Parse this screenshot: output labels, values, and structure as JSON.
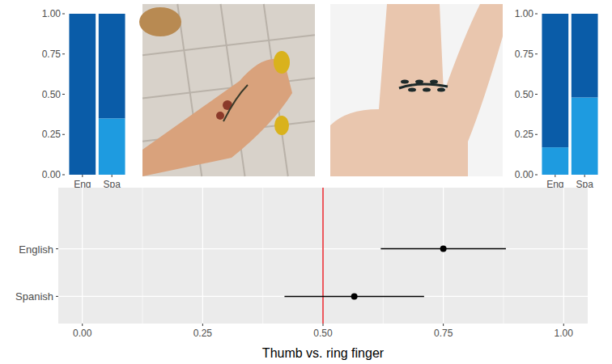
{
  "chart_data": [
    {
      "type": "bar",
      "stacked": true,
      "grid": false,
      "categories": [
        "Eng",
        "Spa"
      ],
      "series": [
        {
          "color": "#1e9be0",
          "values": [
            0,
            0.35
          ]
        },
        {
          "color": "#0a5ca8",
          "values": [
            1,
            0.65
          ]
        }
      ],
      "ylim": [
        0,
        1
      ],
      "yticks": [
        {
          "value": 0,
          "label": "0.00"
        },
        {
          "value": 0.25,
          "label": "0.25"
        },
        {
          "value": 0.5,
          "label": "0.50"
        },
        {
          "value": 0.75,
          "label": "0.75"
        },
        {
          "value": 1,
          "label": "1.00"
        }
      ]
    },
    {
      "type": "bar",
      "stacked": true,
      "grid": false,
      "categories": [
        "Eng",
        "Spa"
      ],
      "series": [
        {
          "color": "#1e9be0",
          "values": [
            0.17,
            0.48
          ]
        },
        {
          "color": "#0a5ca8",
          "values": [
            0.83,
            0.52
          ]
        }
      ],
      "ylim": [
        0,
        1
      ],
      "yticks": [
        {
          "value": 0,
          "label": "0.00"
        },
        {
          "value": 0.25,
          "label": "0.25"
        },
        {
          "value": 0.5,
          "label": "0.50"
        },
        {
          "value": 0.75,
          "label": "0.75"
        },
        {
          "value": 1,
          "label": "1.00"
        }
      ]
    },
    {
      "type": "dot",
      "orientation": "horizontal",
      "grid": true,
      "color": "#000000",
      "categories": [
        "English",
        "Spanish"
      ],
      "values": [
        0.75,
        0.565
      ],
      "errors": [
        0.13,
        0.145
      ],
      "reference_line": 0.5,
      "x_label": "Thumb vs. ring finger",
      "xlim": [
        -0.05,
        1.05
      ],
      "xticks": [
        {
          "value": 0,
          "label": "0.00"
        },
        {
          "value": 0.25,
          "label": "0.25"
        },
        {
          "value": 0.5,
          "label": "0.50"
        },
        {
          "value": 0.75,
          "label": "0.75"
        },
        {
          "value": 1,
          "label": "1.00"
        }
      ]
    }
  ]
}
